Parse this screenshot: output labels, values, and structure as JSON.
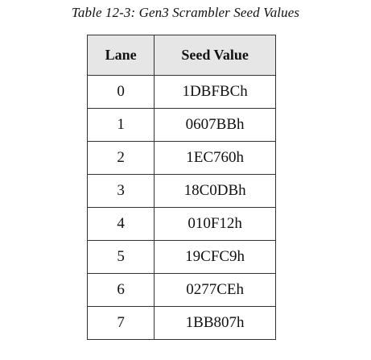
{
  "caption": "Table 12-3: Gen3 Scrambler Seed Values",
  "table": {
    "headers": [
      "Lane",
      "Seed Value"
    ],
    "rows": [
      [
        "0",
        "1DBFBCh"
      ],
      [
        "1",
        "0607BBh"
      ],
      [
        "2",
        "1EC760h"
      ],
      [
        "3",
        "18C0DBh"
      ],
      [
        "4",
        "010F12h"
      ],
      [
        "5",
        "19CFC9h"
      ],
      [
        "6",
        "0277CEh"
      ],
      [
        "7",
        "1BB807h"
      ]
    ]
  }
}
